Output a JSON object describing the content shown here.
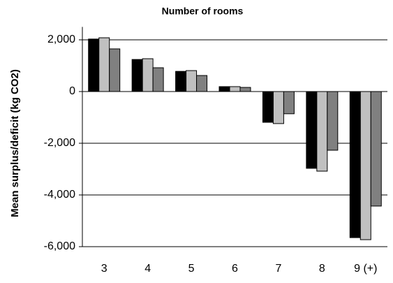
{
  "chart_data": {
    "type": "bar",
    "title": "Number of rooms",
    "y_label": "Mean surplus/deficit (kg CO2)",
    "categories": [
      "3",
      "4",
      "5",
      "6",
      "7",
      "8",
      "9 (+)"
    ],
    "series": [
      {
        "color": "#000000",
        "values": [
          2030,
          1240,
          780,
          190,
          -1190,
          -2970,
          -5650
        ]
      },
      {
        "color": "#c0c0c0",
        "values": [
          2080,
          1270,
          810,
          190,
          -1240,
          -3080,
          -5730
        ]
      },
      {
        "color": "#808080",
        "values": [
          1650,
          920,
          620,
          160,
          -860,
          -2270,
          -4430
        ]
      }
    ],
    "ylim": [
      -6000,
      2500
    ],
    "yticks": [
      {
        "value": -6000,
        "label": "-6,000"
      },
      {
        "value": -4000,
        "label": "-4,000"
      },
      {
        "value": -2000,
        "label": "-2,000"
      },
      0,
      {
        "value": 2000,
        "label": "2,000"
      }
    ],
    "grid": true
  }
}
